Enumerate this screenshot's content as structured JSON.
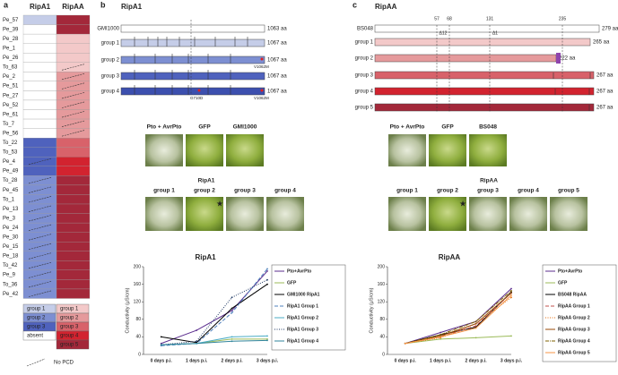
{
  "panel_a": {
    "letter": "a",
    "col_headers": [
      "RipA1",
      "RipAA"
    ],
    "legend_ripa1": [
      {
        "label": "group 1",
        "color": "#c5cde8"
      },
      {
        "label": "group 2",
        "color": "#7d8fd2"
      },
      {
        "label": "group 3",
        "color": "#4f62bd"
      },
      {
        "label": "absent",
        "color": "#ffffff"
      }
    ],
    "legend_ripaa": [
      {
        "label": "group 1",
        "color": "#f3c9c9"
      },
      {
        "label": "group 2",
        "color": "#e59a9c"
      },
      {
        "label": "group 3",
        "color": "#d8626a"
      },
      {
        "label": "group 4",
        "color": "#d2232f"
      },
      {
        "label": "group 5",
        "color": "#a3283a"
      }
    ],
    "no_pcd_label": "No PCD",
    "rows": [
      {
        "label": "Pe_57",
        "RipA1": "group 1",
        "RipAA": "group 5",
        "no_pcd": [
          false,
          false
        ]
      },
      {
        "label": "Pe_39",
        "RipA1": "absent",
        "RipAA": "group 5",
        "no_pcd": [
          false,
          false
        ]
      },
      {
        "label": "Pe_28",
        "RipA1": "absent",
        "RipAA": "group 1",
        "no_pcd": [
          false,
          false
        ]
      },
      {
        "label": "Pe_1",
        "RipA1": "absent",
        "RipAA": "group 1",
        "no_pcd": [
          false,
          false
        ]
      },
      {
        "label": "Pe_26",
        "RipA1": "absent",
        "RipAA": "group 1",
        "no_pcd": [
          false,
          false
        ]
      },
      {
        "label": "To_63",
        "RipA1": "absent",
        "RipAA": "group 1",
        "no_pcd": [
          false,
          true
        ]
      },
      {
        "label": "Pe_2",
        "RipA1": "absent",
        "RipAA": "group 2",
        "no_pcd": [
          false,
          true
        ]
      },
      {
        "label": "Pe_51",
        "RipA1": "absent",
        "RipAA": "group 2",
        "no_pcd": [
          false,
          true
        ]
      },
      {
        "label": "Pe_27",
        "RipA1": "absent",
        "RipAA": "group 2",
        "no_pcd": [
          false,
          true
        ]
      },
      {
        "label": "Pe_52",
        "RipA1": "absent",
        "RipAA": "group 2",
        "no_pcd": [
          false,
          true
        ]
      },
      {
        "label": "Pe_61",
        "RipA1": "absent",
        "RipAA": "group 2",
        "no_pcd": [
          false,
          true
        ]
      },
      {
        "label": "To_7",
        "RipA1": "absent",
        "RipAA": "group 2",
        "no_pcd": [
          false,
          true
        ]
      },
      {
        "label": "Pe_56",
        "RipA1": "absent",
        "RipAA": "group 2",
        "no_pcd": [
          false,
          true
        ]
      },
      {
        "label": "To_22",
        "RipA1": "group 3",
        "RipAA": "group 3",
        "no_pcd": [
          false,
          false
        ]
      },
      {
        "label": "To_53",
        "RipA1": "group 3",
        "RipAA": "group 3",
        "no_pcd": [
          false,
          false
        ]
      },
      {
        "label": "Pe_4",
        "RipA1": "group 3",
        "RipAA": "group 4",
        "no_pcd": [
          true,
          false
        ]
      },
      {
        "label": "Pe_49",
        "RipA1": "group 3",
        "RipAA": "group 4",
        "no_pcd": [
          false,
          false
        ]
      },
      {
        "label": "To_28",
        "RipA1": "group 2",
        "RipAA": "group 5",
        "no_pcd": [
          true,
          false
        ]
      },
      {
        "label": "Pe_45",
        "RipA1": "group 2",
        "RipAA": "group 5",
        "no_pcd": [
          true,
          false
        ]
      },
      {
        "label": "To_1",
        "RipA1": "group 2",
        "RipAA": "group 5",
        "no_pcd": [
          true,
          false
        ]
      },
      {
        "label": "Pe_13",
        "RipA1": "group 2",
        "RipAA": "group 5",
        "no_pcd": [
          true,
          false
        ]
      },
      {
        "label": "Pe_3",
        "RipA1": "group 2",
        "RipAA": "group 5",
        "no_pcd": [
          true,
          false
        ]
      },
      {
        "label": "Pe_24",
        "RipA1": "group 2",
        "RipAA": "group 5",
        "no_pcd": [
          true,
          false
        ]
      },
      {
        "label": "Pe_30",
        "RipA1": "group 2",
        "RipAA": "group 5",
        "no_pcd": [
          true,
          false
        ]
      },
      {
        "label": "Pe_15",
        "RipA1": "group 2",
        "RipAA": "group 5",
        "no_pcd": [
          true,
          false
        ]
      },
      {
        "label": "Pe_18",
        "RipA1": "group 2",
        "RipAA": "group 5",
        "no_pcd": [
          true,
          false
        ]
      },
      {
        "label": "To_42",
        "RipA1": "group 2",
        "RipAA": "group 5",
        "no_pcd": [
          true,
          false
        ]
      },
      {
        "label": "Pe_9",
        "RipA1": "group 2",
        "RipAA": "group 5",
        "no_pcd": [
          true,
          false
        ]
      },
      {
        "label": "To_36",
        "RipA1": "group 2",
        "RipAA": "group 5",
        "no_pcd": [
          true,
          false
        ]
      },
      {
        "label": "Pe_42",
        "RipA1": "group 2",
        "RipAA": "group 5",
        "no_pcd": [
          true,
          false
        ]
      }
    ]
  },
  "panel_b": {
    "letter": "b",
    "title": "RipA1",
    "genes": [
      {
        "name": "GMI1000",
        "length": "1063 aa",
        "color": "#ffffff"
      },
      {
        "name": "group 1",
        "length": "1067 aa",
        "color": "#c5cde8"
      },
      {
        "name": "group 2",
        "length": "1067 aa",
        "color": "#7d8fd2"
      },
      {
        "name": "group 3",
        "length": "1067 aa",
        "color": "#4f62bd"
      },
      {
        "name": "group 4",
        "length": "1067 aa",
        "color": "#3c4fae"
      }
    ],
    "mutations": [
      "V1062M",
      "V1062M",
      "G710D"
    ],
    "photo_row1": [
      "Pto + AvrPto",
      "GFP",
      "GMI1000"
    ],
    "photo_row2_title": "RipA1",
    "photo_row2": [
      "group 1",
      "group 2",
      "group 3",
      "group 4"
    ]
  },
  "panel_c": {
    "letter": "c",
    "title": "RipAA",
    "positions": [
      "57",
      "68",
      "131",
      "235"
    ],
    "deletions": [
      "Δ12",
      "Δ1"
    ],
    "genes": [
      {
        "name": "BS048",
        "length": "279 aa",
        "color": "#ffffff"
      },
      {
        "name": "group 1",
        "length": "265 aa",
        "color": "#f3c9c9"
      },
      {
        "name": "group 2",
        "length": "222 aa",
        "color": "#e59a9c"
      },
      {
        "name": "group 3",
        "length": "267 aa",
        "color": "#d8626a"
      },
      {
        "name": "group 4",
        "length": "267 aa",
        "color": "#d2232f"
      },
      {
        "name": "group 5",
        "length": "267 aa",
        "color": "#a3283a"
      }
    ],
    "photo_row1": [
      "Pto + AvrPto",
      "GFP",
      "BS048"
    ],
    "photo_row2_title": "RipAA",
    "photo_row2": [
      "group 1",
      "group 2",
      "group 3",
      "group 4",
      "group 5"
    ]
  },
  "charts": [
    {
      "type": "line",
      "title": "RipA1",
      "y_label": "Conductivity (µS/cm)",
      "categories": [
        "0 days p.i.",
        "1 days p.i.",
        "2 days p.i.",
        "3 days p.i."
      ],
      "ylim": [
        0,
        200
      ],
      "yticks": [
        0,
        40,
        80,
        120,
        160,
        200
      ],
      "series": [
        {
          "name": "Pto+AvrPto",
          "color": "#5b2d8e",
          "dash": "",
          "values": [
            25,
            55,
            100,
            190
          ]
        },
        {
          "name": "GFP",
          "color": "#9bbb59",
          "dash": "",
          "values": [
            22,
            25,
            35,
            35
          ]
        },
        {
          "name": "GMI1000 RipA1",
          "color": "#000000",
          "dash": "",
          "values": [
            40,
            27,
            105,
            160
          ]
        },
        {
          "name": "RipA1 Group 1",
          "color": "#4f81bd",
          "dash": "4 2",
          "values": [
            20,
            25,
            95,
            195
          ]
        },
        {
          "name": "RipA1 Group 2",
          "color": "#4bacc6",
          "dash": "",
          "values": [
            22,
            25,
            40,
            42
          ]
        },
        {
          "name": "RipA1 Group 3",
          "color": "#1f3864",
          "dash": "1 1.5",
          "values": [
            22,
            30,
            130,
            170
          ]
        },
        {
          "name": "RipA1 Group 4",
          "color": "#31859c",
          "dash": "",
          "values": [
            22,
            25,
            30,
            32
          ]
        }
      ]
    },
    {
      "type": "line",
      "title": "RipAA",
      "y_label": "Conductivity (µS/cm)",
      "categories": [
        "0 days p.i.",
        "1 days p.i.",
        "2 days p.i.",
        "3 days p.i."
      ],
      "ylim": [
        0,
        200
      ],
      "yticks": [
        0,
        40,
        80,
        120,
        160,
        200
      ],
      "series": [
        {
          "name": "Pto+AvrPto",
          "color": "#5b2d8e",
          "dash": "",
          "values": [
            25,
            50,
            75,
            150
          ]
        },
        {
          "name": "GFP",
          "color": "#9bbb59",
          "dash": "",
          "values": [
            25,
            35,
            38,
            42
          ]
        },
        {
          "name": "BS048 RipAA",
          "color": "#000000",
          "dash": "",
          "values": [
            25,
            45,
            62,
            142
          ]
        },
        {
          "name": "RipAA Group 1",
          "color": "#c0504d",
          "dash": "4 2",
          "values": [
            25,
            40,
            65,
            140
          ]
        },
        {
          "name": "RipAA Group 2",
          "color": "#e46c0a",
          "dash": "1 1.5",
          "values": [
            25,
            38,
            70,
            130
          ]
        },
        {
          "name": "RipAA Group 3",
          "color": "#984807",
          "dash": "",
          "values": [
            25,
            42,
            70,
            140
          ]
        },
        {
          "name": "RipAA Group 4",
          "color": "#7f6000",
          "dash": "4 1 1 1",
          "values": [
            25,
            45,
            75,
            145
          ]
        },
        {
          "name": "RipAA Group 5",
          "color": "#f79646",
          "dash": "",
          "values": [
            25,
            40,
            60,
            135
          ]
        }
      ]
    }
  ]
}
